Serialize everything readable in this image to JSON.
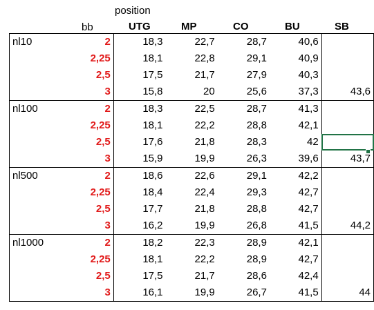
{
  "header": {
    "position_label": "position",
    "bb_label": "bb",
    "columns": [
      "UTG",
      "MP",
      "CO",
      "BU",
      "SB"
    ]
  },
  "groups": [
    {
      "name": "nl10",
      "rows": [
        {
          "bb": "2",
          "values": [
            "18,3",
            "22,7",
            "28,7",
            "40,6",
            ""
          ]
        },
        {
          "bb": "2,25",
          "values": [
            "18,1",
            "22,8",
            "29,1",
            "40,9",
            ""
          ]
        },
        {
          "bb": "2,5",
          "values": [
            "17,5",
            "21,7",
            "27,9",
            "40,3",
            ""
          ]
        },
        {
          "bb": "3",
          "values": [
            "15,8",
            "20",
            "25,6",
            "37,3",
            "43,6"
          ]
        }
      ]
    },
    {
      "name": "nl100",
      "rows": [
        {
          "bb": "2",
          "values": [
            "18,3",
            "22,5",
            "28,7",
            "41,3",
            ""
          ]
        },
        {
          "bb": "2,25",
          "values": [
            "18,1",
            "22,2",
            "28,8",
            "42,1",
            ""
          ]
        },
        {
          "bb": "2,5",
          "values": [
            "17,6",
            "21,8",
            "28,3",
            "42",
            ""
          ]
        },
        {
          "bb": "3",
          "values": [
            "15,9",
            "19,9",
            "26,3",
            "39,6",
            "43,7"
          ]
        }
      ]
    },
    {
      "name": "nl500",
      "rows": [
        {
          "bb": "2",
          "values": [
            "18,6",
            "22,6",
            "29,1",
            "42,2",
            ""
          ]
        },
        {
          "bb": "2,25",
          "values": [
            "18,4",
            "22,4",
            "29,3",
            "42,7",
            ""
          ]
        },
        {
          "bb": "2,5",
          "values": [
            "17,7",
            "21,8",
            "28,8",
            "42,7",
            ""
          ]
        },
        {
          "bb": "3",
          "values": [
            "16,2",
            "19,9",
            "26,8",
            "41,5",
            "44,2"
          ]
        }
      ]
    },
    {
      "name": "nl1000",
      "rows": [
        {
          "bb": "2",
          "values": [
            "18,2",
            "22,3",
            "28,9",
            "42,1",
            ""
          ]
        },
        {
          "bb": "2,25",
          "values": [
            "18,1",
            "22,2",
            "28,9",
            "42,7",
            ""
          ]
        },
        {
          "bb": "2,5",
          "values": [
            "17,5",
            "21,7",
            "28,6",
            "42,4",
            ""
          ]
        },
        {
          "bb": "3",
          "values": [
            "16,1",
            "19,9",
            "26,7",
            "41,5",
            "44"
          ]
        }
      ]
    }
  ],
  "colors": {
    "bb_text": "#e11919",
    "selection": "#217346"
  }
}
